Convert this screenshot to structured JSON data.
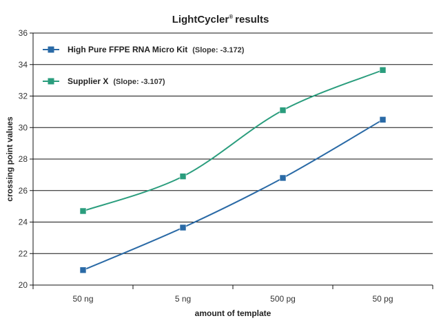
{
  "chart_data": {
    "type": "line",
    "title": "LightCycler",
    "title_mark": "®",
    "title_suffix": "results",
    "xlabel": "amount of template",
    "ylabel": "crossing point values",
    "categories": [
      "50 ng",
      "5 ng",
      "500 pg",
      "50 pg"
    ],
    "ylim": [
      20,
      36
    ],
    "yticks": [
      20,
      22,
      24,
      26,
      28,
      30,
      32,
      34,
      36
    ],
    "grid": true,
    "legend_position": "top-left",
    "series": [
      {
        "name": "High Pure FFPE RNA Micro Kit",
        "note": "(Slope: -3.172)",
        "color": "#2a6aa6",
        "marker": "square",
        "values": [
          20.95,
          23.65,
          26.8,
          30.5
        ]
      },
      {
        "name": "Supplier X",
        "note": "(Slope: -3.107)",
        "color": "#2a9d7d",
        "marker": "square",
        "values": [
          24.7,
          26.9,
          31.1,
          33.65
        ]
      }
    ]
  }
}
